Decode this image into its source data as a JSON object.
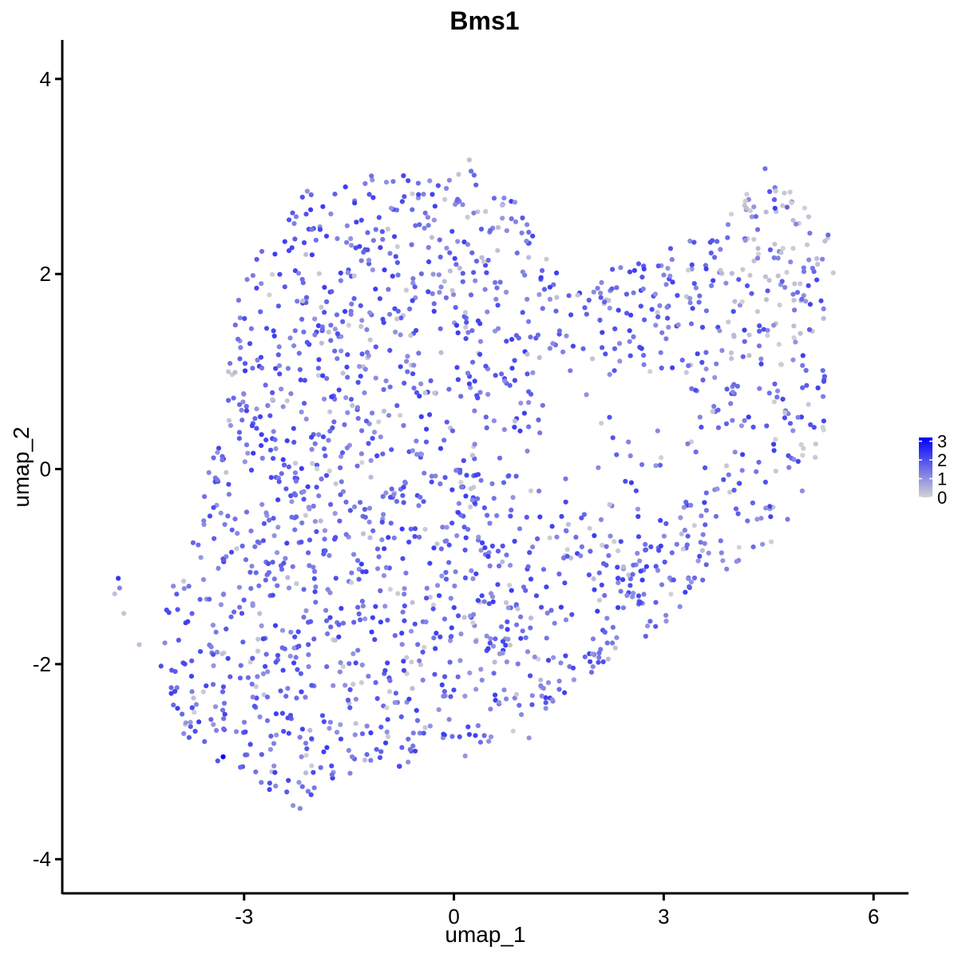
{
  "chart_data": {
    "type": "scatter",
    "title": "Bms1",
    "xlabel": "umap_1",
    "ylabel": "umap_2",
    "xlim": [
      -5.6,
      6.5
    ],
    "ylim": [
      -4.35,
      4.4
    ],
    "x_ticks": [
      -3,
      0,
      3,
      6
    ],
    "y_ticks": [
      -4,
      -2,
      0,
      2,
      4
    ],
    "x_tick_labels": [
      "-3",
      "0",
      "3",
      "6"
    ],
    "y_tick_labels": [
      "-4",
      "-2",
      "0",
      "2",
      "4"
    ],
    "grid": false,
    "legend": {
      "placement": "right",
      "type": "colorbar",
      "min": 0,
      "max": 3.2,
      "ticks": [
        0,
        1,
        2,
        3
      ],
      "tick_labels": [
        "0",
        "1",
        "2",
        "3"
      ],
      "low_color": "#d3d3d3",
      "high_color": "#0000ff"
    },
    "points": [
      {
        "x": -4.8,
        "y": -1.12,
        "v": 2.4
      },
      {
        "x": -4.78,
        "y": -1.22,
        "v": 1.2
      },
      {
        "x": -4.85,
        "y": -1.28,
        "v": 0.3
      },
      {
        "x": -4.72,
        "y": -1.48,
        "v": 0.2
      },
      {
        "x": -4.5,
        "y": -1.8,
        "v": 0.3
      },
      {
        "x": -3.3,
        "y": -2.95,
        "v": 3.2
      },
      {
        "x": 0.22,
        "y": 3.17,
        "v": 0.3
      },
      {
        "x": 4.45,
        "y": 3.08,
        "v": 1.5
      },
      {
        "x": 5.35,
        "y": 2.4,
        "v": 1.6
      },
      {
        "x": 5.3,
        "y": 0.95,
        "v": 1.8
      },
      {
        "x": 4.6,
        "y": 2.85,
        "v": 0.2
      },
      {
        "x": 4.7,
        "y": 2.7,
        "v": 0.2
      },
      {
        "x": 4.85,
        "y": 2.55,
        "v": 0.3
      },
      {
        "x": 5.05,
        "y": 2.3,
        "v": 0.2
      },
      {
        "x": 5.2,
        "y": 2.1,
        "v": 0.3
      },
      {
        "x": 4.95,
        "y": 1.9,
        "v": 0.2
      },
      {
        "x": -2.2,
        "y": -3.48,
        "v": 1.2
      },
      {
        "x": -2.3,
        "y": -3.45,
        "v": 1.0
      }
    ]
  }
}
